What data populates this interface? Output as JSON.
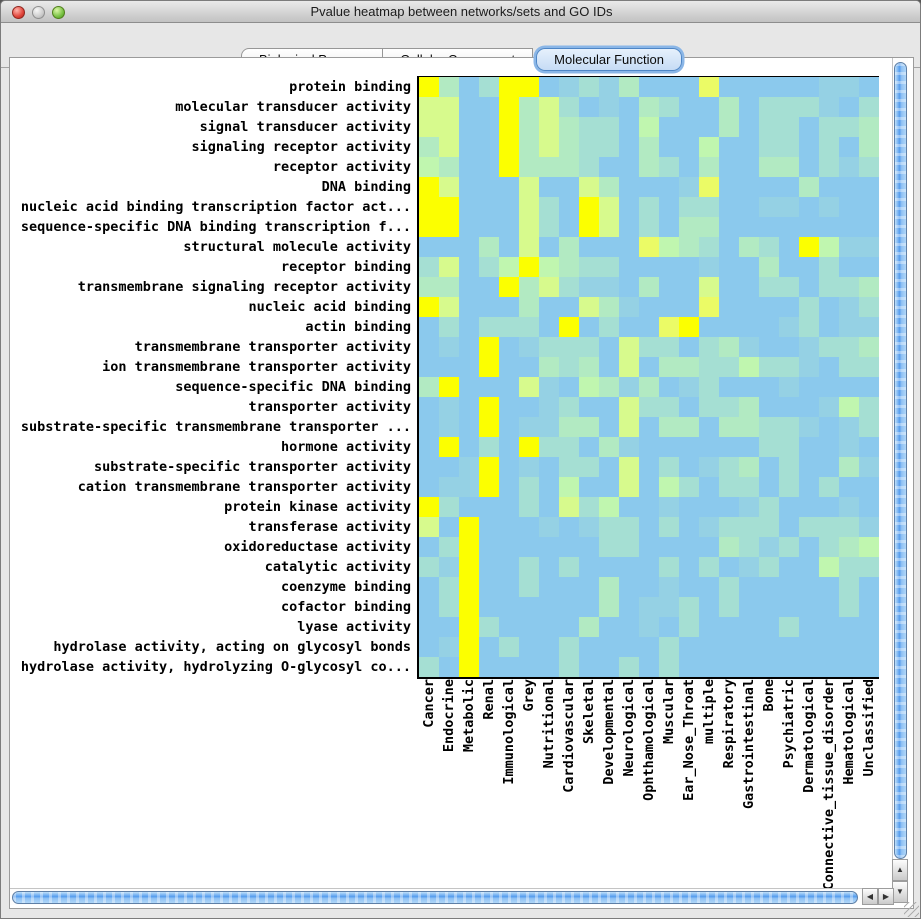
{
  "window": {
    "title": "Pvalue heatmap between networks/sets and GO IDs"
  },
  "tabs": [
    {
      "label": "Biological Process",
      "selected": false
    },
    {
      "label": "Cellular Component",
      "selected": false
    },
    {
      "label": "Molecular Function",
      "selected": true
    }
  ],
  "icons": {
    "up_arrow": "▲",
    "down_arrow": "▼",
    "left_arrow": "◀",
    "right_arrow": "▶"
  },
  "chart_data": {
    "type": "heatmap",
    "title": "Pvalue heatmap between networks/sets and GO IDs",
    "cell_size_px": 20,
    "rows": [
      "protein binding",
      "molecular transducer activity",
      "signal transducer activity",
      "signaling receptor activity",
      "receptor activity",
      "DNA binding",
      "nucleic acid binding transcription factor act...",
      "sequence-specific DNA binding transcription f...",
      "structural molecule activity",
      "receptor binding",
      "transmembrane signaling receptor activity",
      "nucleic acid binding",
      "actin binding",
      "transmembrane transporter activity",
      "ion transmembrane transporter activity",
      "sequence-specific DNA binding",
      "transporter activity",
      "substrate-specific transmembrane transporter ...",
      "hormone activity",
      "substrate-specific transporter activity",
      "cation transmembrane transporter activity",
      "protein kinase activity",
      "transferase activity",
      "oxidoreductase activity",
      "catalytic activity",
      "coenzyme binding",
      "cofactor binding",
      "lyase activity",
      "hydrolase activity, acting on glycosyl bonds",
      "hydrolase activity, hydrolyzing O-glycosyl co..."
    ],
    "columns": [
      "Cancer",
      "Endocrine",
      "Metabolic",
      "Renal",
      "Immunological",
      "Grey",
      "Nutritional",
      "Cardiovascular",
      "Skeletal",
      "Developmental",
      "Neurological",
      "Ophthamological",
      "Muscular",
      "Ear_Nose_Throat",
      "multiple",
      "Respiratory",
      "Gastrointestinal",
      "Bone",
      "Psychiatric",
      "Dermatological",
      "Connective_tissue_disorder",
      "Hematological",
      "Unclassified"
    ],
    "palette": [
      "#8BC9ED",
      "#95D1E4",
      "#A5DFD3",
      "#B2EAC2",
      "#C0F6AF",
      "#D7FA8D",
      "#EBFB66",
      "#FCFF00"
    ],
    "cells": [
      "73027701213000600000110",
      "55007352010320030222102",
      "55007353220400030220223",
      "35007353220300400220203",
      "43007333200320300330212",
      "75000500530001600003000",
      "77000520750202200110100",
      "77000520750203300000000",
      "00030503000643203207411",
      "25024743220000100300200",
      "33007352110300500220223",
      "75000300531000600002012",
      "02022207020067000012011",
      "01070122205220231001223",
      "00070032305033224221022",
      "37000510431301200010000",
      "01070012005220223000142",
      "01070113305033033221012",
      "07020722031000000220010",
      "00170102205020123020031",
      "01170204005042022020200",
      "72000205240010001200010",
      "50700010122020122202221",
      "02700000022000032120234",
      "21700202000020201200422",
      "02700200030010020000020",
      "02700000030112020000020",
      "00720000300102000020000",
      "01702002000020000000000",
      "20700002002020000000000"
    ]
  }
}
